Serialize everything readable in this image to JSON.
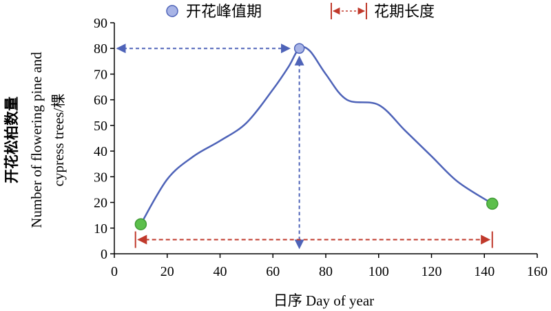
{
  "chart_data": {
    "type": "line",
    "title": "",
    "xlabel": "日序 Day of year",
    "ylabel_line1": "开花松柏数量",
    "ylabel_line2": "Number of flowering pine and",
    "ylabel_line3": "cypress trees/棵",
    "xlim": [
      0,
      160
    ],
    "ylim": [
      0,
      90
    ],
    "x_ticks": [
      0,
      20,
      40,
      60,
      80,
      100,
      120,
      140,
      160
    ],
    "y_ticks": [
      0,
      10,
      20,
      30,
      40,
      50,
      60,
      70,
      80,
      90
    ],
    "grid": false,
    "legend_position": "top",
    "legend": [
      {
        "label": "开花峰值期",
        "marker": "circle"
      },
      {
        "label": "花期长度",
        "marker": "double-arrow"
      }
    ],
    "series": [
      {
        "color": "#4e63b8",
        "points": [
          {
            "x": 10,
            "y": 11.5
          },
          {
            "x": 20,
            "y": 29
          },
          {
            "x": 30,
            "y": 38
          },
          {
            "x": 40,
            "y": 44
          },
          {
            "x": 50,
            "y": 51
          },
          {
            "x": 60,
            "y": 64
          },
          {
            "x": 66,
            "y": 73
          },
          {
            "x": 70,
            "y": 80
          },
          {
            "x": 74,
            "y": 79
          },
          {
            "x": 80,
            "y": 70
          },
          {
            "x": 88,
            "y": 60
          },
          {
            "x": 100,
            "y": 58
          },
          {
            "x": 110,
            "y": 48
          },
          {
            "x": 120,
            "y": 38
          },
          {
            "x": 130,
            "y": 28
          },
          {
            "x": 143,
            "y": 19.5
          }
        ]
      }
    ],
    "start_point": {
      "x": 10,
      "y": 11.5,
      "color": "#5cbf4b"
    },
    "end_point": {
      "x": 143,
      "y": 19.5,
      "color": "#5cbf4b"
    },
    "peak_point": {
      "x": 70,
      "y": 80,
      "color": "#a8b4e6"
    },
    "flowering_duration": {
      "x_start": 8,
      "x_end": 143,
      "y": 5.5,
      "color": "#c0392b"
    },
    "peak_arrow_color": "#4e63b8"
  }
}
